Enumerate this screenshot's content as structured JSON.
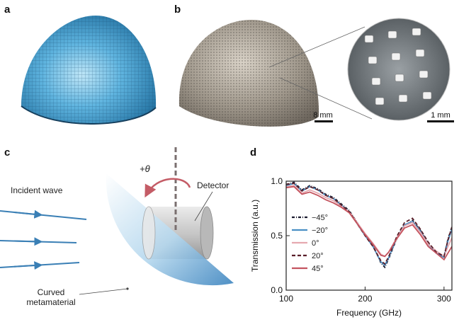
{
  "panels": {
    "a": {
      "letter": "a"
    },
    "b": {
      "letter": "b",
      "scalebar_main": "8 mm",
      "scalebar_inset": "1 mm"
    },
    "c": {
      "letter": "c",
      "incident_wave": "Incident wave",
      "detector": "Detector",
      "angle": "+θ",
      "material_line1": "Curved",
      "material_line2": "metamaterial"
    },
    "d": {
      "letter": "d"
    }
  },
  "chart_data": {
    "type": "line",
    "xlabel": "Frequency (GHz)",
    "ylabel": "Transmission (a.u.)",
    "xlim": [
      100,
      310
    ],
    "ylim": [
      0,
      1.0
    ],
    "xticks": [
      100,
      200,
      300
    ],
    "yticks": [
      0.0,
      0.5,
      1.0
    ],
    "legend_position": "left",
    "series": [
      {
        "name": "−45°",
        "color": "#1a1a2e",
        "dash": "4,2,1,2",
        "x": [
          100,
          110,
          120,
          130,
          140,
          150,
          160,
          170,
          180,
          190,
          200,
          210,
          220,
          225,
          230,
          240,
          250,
          260,
          270,
          280,
          290,
          300,
          305,
          310
        ],
        "y": [
          0.97,
          0.99,
          0.92,
          0.96,
          0.93,
          0.88,
          0.85,
          0.79,
          0.73,
          0.62,
          0.51,
          0.41,
          0.25,
          0.21,
          0.29,
          0.47,
          0.59,
          0.64,
          0.55,
          0.43,
          0.35,
          0.31,
          0.47,
          0.58
        ]
      },
      {
        "name": "−20°",
        "color": "#4a8fc4",
        "dash": "",
        "x": [
          100,
          110,
          120,
          130,
          140,
          150,
          160,
          170,
          180,
          190,
          200,
          210,
          220,
          225,
          230,
          240,
          250,
          260,
          270,
          280,
          290,
          300,
          305,
          310
        ],
        "y": [
          0.96,
          0.98,
          0.91,
          0.95,
          0.92,
          0.87,
          0.84,
          0.78,
          0.72,
          0.61,
          0.5,
          0.4,
          0.26,
          0.23,
          0.3,
          0.48,
          0.6,
          0.63,
          0.54,
          0.42,
          0.34,
          0.3,
          0.45,
          0.56
        ]
      },
      {
        "name": "0°",
        "color": "#e6a9b0",
        "dash": "",
        "x": [
          100,
          110,
          120,
          130,
          140,
          150,
          160,
          170,
          180,
          190,
          200,
          210,
          220,
          225,
          230,
          240,
          250,
          260,
          270,
          280,
          290,
          300,
          305,
          310
        ],
        "y": [
          0.95,
          0.96,
          0.89,
          0.92,
          0.89,
          0.85,
          0.82,
          0.77,
          0.72,
          0.62,
          0.52,
          0.43,
          0.33,
          0.31,
          0.35,
          0.48,
          0.59,
          0.62,
          0.53,
          0.42,
          0.36,
          0.31,
          0.4,
          0.48
        ]
      },
      {
        "name": "20°",
        "color": "#5a1f2a",
        "dash": "5,3",
        "x": [
          100,
          110,
          120,
          130,
          140,
          150,
          160,
          170,
          180,
          190,
          200,
          210,
          220,
          225,
          230,
          240,
          250,
          260,
          270,
          280,
          290,
          300,
          305,
          310
        ],
        "y": [
          0.97,
          0.98,
          0.91,
          0.95,
          0.92,
          0.87,
          0.84,
          0.78,
          0.72,
          0.61,
          0.5,
          0.4,
          0.27,
          0.24,
          0.31,
          0.49,
          0.62,
          0.66,
          0.56,
          0.44,
          0.35,
          0.31,
          0.46,
          0.58
        ]
      },
      {
        "name": "45°",
        "color": "#c4545f",
        "dash": "",
        "x": [
          100,
          110,
          120,
          130,
          140,
          150,
          160,
          170,
          180,
          190,
          200,
          210,
          220,
          225,
          230,
          240,
          250,
          260,
          270,
          280,
          290,
          300,
          305,
          310
        ],
        "y": [
          0.94,
          0.95,
          0.88,
          0.9,
          0.87,
          0.83,
          0.8,
          0.76,
          0.71,
          0.61,
          0.51,
          0.42,
          0.32,
          0.31,
          0.35,
          0.47,
          0.57,
          0.6,
          0.51,
          0.4,
          0.34,
          0.28,
          0.34,
          0.4
        ]
      }
    ]
  }
}
